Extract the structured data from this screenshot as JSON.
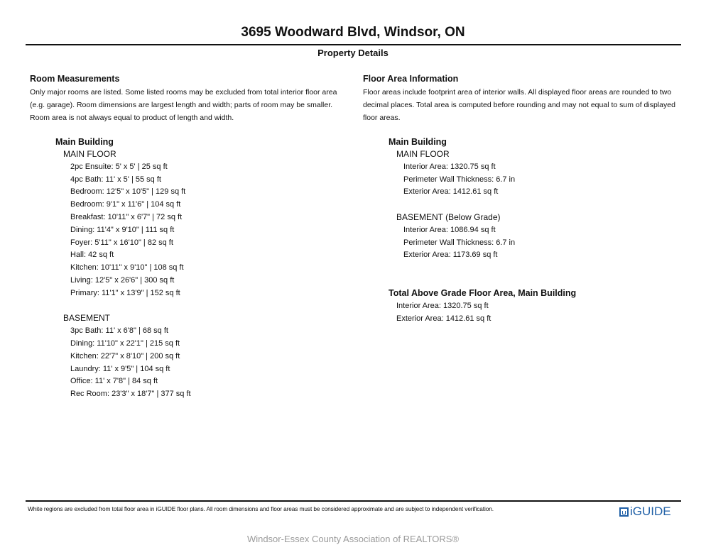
{
  "title": "3695 Woodward Blvd, Windsor, ON",
  "subtitle": "Property Details",
  "left": {
    "heading": "Room Measurements",
    "description": "Only major rooms are listed. Some listed rooms may be excluded from total interior floor area (e.g. garage). Room dimensions are largest length and width; parts of room may be smaller. Room area is not always equal to product of length and width.",
    "building": "Main Building",
    "floors": [
      {
        "name": "MAIN FLOOR",
        "rooms": [
          "2pc Ensuite: 5' x 5' | 25 sq ft",
          "4pc Bath: 11' x 5' | 55 sq ft",
          "Bedroom: 12'5\" x 10'5\" | 129 sq ft",
          "Bedroom: 9'1\" x 11'6\" | 104 sq ft",
          "Breakfast: 10'11\" x 6'7\" | 72 sq ft",
          "Dining: 11'4\" x 9'10\" | 111 sq ft",
          "Foyer: 5'11\" x 16'10\" | 82 sq ft",
          "Hall: 42 sq ft",
          "Kitchen: 10'11\" x 9'10\" | 108 sq ft",
          "Living: 12'5\" x 26'6\" | 300 sq ft",
          "Primary: 11'1\" x 13'9\" | 152 sq ft"
        ]
      },
      {
        "name": "BASEMENT",
        "rooms": [
          "3pc Bath: 11' x 6'8\" | 68 sq ft",
          "Dining: 11'10\" x 22'1\" | 215 sq ft",
          "Kitchen: 22'7\" x 8'10\" | 200 sq ft",
          "Laundry: 11' x 9'5\" | 104 sq ft",
          "Office: 11' x 7'8\" | 84 sq ft",
          "Rec Room: 23'3\" x 18'7\" | 377 sq ft"
        ]
      }
    ]
  },
  "right": {
    "heading": "Floor Area Information",
    "description": "Floor areas include footprint area of interior walls. All displayed floor areas are rounded to two decimal places. Total area is computed before rounding and may not equal to sum of displayed floor areas.",
    "building": "Main Building",
    "floors": [
      {
        "name": "MAIN FLOOR",
        "lines": [
          "Interior Area: 1320.75 sq ft",
          "Perimeter Wall Thickness: 6.7 in",
          "Exterior Area: 1412.61 sq ft"
        ]
      },
      {
        "name": "BASEMENT (Below Grade)",
        "lines": [
          "Interior Area: 1086.94 sq ft",
          "Perimeter Wall Thickness: 6.7 in",
          "Exterior Area: 1173.69 sq ft"
        ]
      }
    ],
    "total_heading": "Total Above Grade Floor Area, Main Building",
    "total_lines": [
      "Interior Area: 1320.75 sq ft",
      "Exterior Area: 1412.61 sq ft"
    ]
  },
  "footer": {
    "note": "White regions are excluded from total floor area in iGUIDE floor plans. All room dimensions and floor areas must be considered approximate and are subject to independent verification.",
    "logo": "iGUIDE",
    "logo_color": "#1f5fa6"
  },
  "watermark": "Windsor-Essex County Association of REALTORS®"
}
